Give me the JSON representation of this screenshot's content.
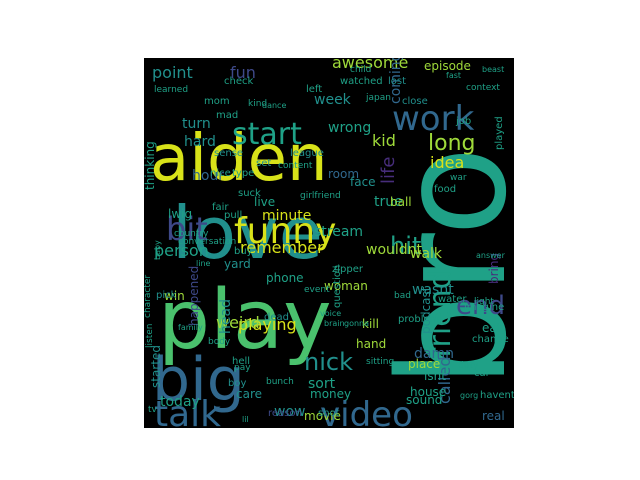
{
  "palette": {
    "background": "#000000",
    "yellow": "#d8e219",
    "light_green": "#9fda3a",
    "green": "#4ac16d",
    "teal": "#1fa187",
    "cyan": "#21908d",
    "blue": "#31688e",
    "indigo": "#3e4989",
    "purple": "#472d7b",
    "dark_purple": "#440154"
  },
  "words": [
    {
      "text": "bro",
      "color": "teal"
    },
    {
      "text": "play",
      "color": "green"
    },
    {
      "text": "aiden",
      "color": "yellow"
    },
    {
      "text": "love",
      "color": "cyan"
    },
    {
      "text": "big",
      "color": "blue"
    },
    {
      "text": "funny",
      "color": "yellow"
    },
    {
      "text": "work",
      "color": "blue"
    },
    {
      "text": "start",
      "color": "teal"
    },
    {
      "text": "talk",
      "color": "blue"
    },
    {
      "text": "video",
      "color": "blue"
    },
    {
      "text": "friend",
      "color": "teal"
    },
    {
      "text": "bit",
      "color": "indigo"
    },
    {
      "text": "nick",
      "color": "cyan"
    },
    {
      "text": "end",
      "color": "indigo"
    },
    {
      "text": "hit",
      "color": "teal"
    },
    {
      "text": "long",
      "color": "light_green"
    },
    {
      "text": "life",
      "color": "purple"
    },
    {
      "text": "awesome",
      "color": "light_green"
    },
    {
      "text": "playing",
      "color": "yellow"
    },
    {
      "text": "remember",
      "color": "yellow"
    },
    {
      "text": "idea",
      "color": "yellow"
    },
    {
      "text": "kid",
      "color": "light_green"
    },
    {
      "text": "fun",
      "color": "indigo"
    },
    {
      "text": "point",
      "color": "cyan"
    },
    {
      "text": "person",
      "color": "teal"
    },
    {
      "text": "weird",
      "color": "light_green"
    },
    {
      "text": "coming",
      "color": "blue"
    },
    {
      "text": "stream",
      "color": "teal"
    },
    {
      "text": "called",
      "color": "blue"
    },
    {
      "text": "damn",
      "color": "blue"
    },
    {
      "text": "true",
      "color": "teal"
    },
    {
      "text": "wasnt",
      "color": "cyan"
    },
    {
      "text": "walk",
      "color": "light_green"
    },
    {
      "text": "turn",
      "color": "cyan"
    },
    {
      "text": "hard",
      "color": "cyan"
    },
    {
      "text": "hour",
      "color": "blue"
    },
    {
      "text": "minute",
      "color": "yellow"
    },
    {
      "text": "head",
      "color": "cyan"
    },
    {
      "text": "wow",
      "color": "cyan"
    },
    {
      "text": "today",
      "color": "teal"
    },
    {
      "text": "sort",
      "color": "teal"
    },
    {
      "text": "movie",
      "color": "light_green"
    },
    {
      "text": "wouldnt",
      "color": "light_green"
    },
    {
      "text": "podcast",
      "color": "cyan"
    },
    {
      "text": "episode",
      "color": "light_green"
    },
    {
      "text": "week",
      "color": "cyan"
    },
    {
      "text": "wrong",
      "color": "teal"
    },
    {
      "text": "thinking",
      "color": "teal"
    },
    {
      "text": "room",
      "color": "blue"
    },
    {
      "text": "face",
      "color": "cyan"
    },
    {
      "text": "woman",
      "color": "light_green"
    },
    {
      "text": "house",
      "color": "teal"
    },
    {
      "text": "real",
      "color": "blue"
    },
    {
      "text": "eat",
      "color": "teal"
    },
    {
      "text": "sound",
      "color": "teal"
    },
    {
      "text": "isnt",
      "color": "teal"
    },
    {
      "text": "place",
      "color": "light_green"
    },
    {
      "text": "phone",
      "color": "teal"
    },
    {
      "text": "ball",
      "color": "light_green"
    },
    {
      "text": "kill",
      "color": "light_green"
    },
    {
      "text": "hand",
      "color": "light_green"
    },
    {
      "text": "money",
      "color": "teal"
    },
    {
      "text": "shot",
      "color": "cyan"
    },
    {
      "text": "care",
      "color": "cyan"
    },
    {
      "text": "win",
      "color": "light_green"
    },
    {
      "text": "started",
      "color": "cyan"
    },
    {
      "text": "happened",
      "color": "indigo"
    },
    {
      "text": "lwig",
      "color": "teal"
    },
    {
      "text": "yard",
      "color": "cyan"
    },
    {
      "text": "live",
      "color": "teal"
    },
    {
      "text": "dead",
      "color": "cyan"
    },
    {
      "text": "bring",
      "color": "purple"
    },
    {
      "text": "pick",
      "color": "cyan"
    },
    {
      "text": "league",
      "color": "cyan"
    },
    {
      "text": "check",
      "color": "teal"
    },
    {
      "text": "played",
      "color": "teal"
    },
    {
      "text": "car",
      "color": "teal"
    },
    {
      "text": "hell",
      "color": "teal"
    },
    {
      "text": "character",
      "color": "teal"
    },
    {
      "text": "buy",
      "color": "teal"
    },
    {
      "text": "mom",
      "color": "teal"
    },
    {
      "text": "question",
      "color": "teal"
    },
    {
      "text": "job",
      "color": "teal"
    },
    {
      "text": "boy",
      "color": "cyan"
    },
    {
      "text": "sense",
      "color": "cyan"
    },
    {
      "text": "set",
      "color": "cyan"
    },
    {
      "text": "lost",
      "color": "cyan"
    },
    {
      "text": "close",
      "color": "cyan"
    },
    {
      "text": "food",
      "color": "teal"
    },
    {
      "text": "water",
      "color": "teal"
    },
    {
      "text": "imagine",
      "color": "teal"
    },
    {
      "text": "change",
      "color": "teal"
    },
    {
      "text": "havent",
      "color": "teal"
    },
    {
      "text": "reason",
      "color": "indigo"
    },
    {
      "text": "fair",
      "color": "teal"
    },
    {
      "text": "type",
      "color": "teal"
    },
    {
      "text": "pull",
      "color": "teal"
    },
    {
      "text": "mad",
      "color": "teal"
    },
    {
      "text": "watched",
      "color": "teal"
    },
    {
      "text": "left",
      "color": "teal"
    },
    {
      "text": "problem",
      "color": "teal"
    },
    {
      "text": "zipper",
      "color": "teal"
    },
    {
      "text": "event",
      "color": "teal"
    },
    {
      "text": "girlfriend",
      "color": "teal"
    },
    {
      "text": "conversation",
      "color": "teal"
    },
    {
      "text": "country",
      "color": "teal"
    },
    {
      "text": "suck",
      "color": "teal"
    },
    {
      "text": "nice",
      "color": "teal"
    },
    {
      "text": "content",
      "color": "teal"
    },
    {
      "text": "learned",
      "color": "teal"
    },
    {
      "text": "japan",
      "color": "teal"
    },
    {
      "text": "duty",
      "color": "teal"
    },
    {
      "text": "light",
      "color": "teal"
    },
    {
      "text": "body",
      "color": "teal"
    },
    {
      "text": "pay",
      "color": "teal"
    },
    {
      "text": "tv",
      "color": "teal"
    },
    {
      "text": "context",
      "color": "teal"
    },
    {
      "text": "war",
      "color": "teal"
    },
    {
      "text": "child",
      "color": "teal"
    },
    {
      "text": "listen",
      "color": "teal"
    },
    {
      "text": "kind",
      "color": "teal"
    },
    {
      "text": "sitting",
      "color": "teal"
    },
    {
      "text": "gorg",
      "color": "teal"
    },
    {
      "text": "answer",
      "color": "teal"
    },
    {
      "text": "dance",
      "color": "teal"
    },
    {
      "text": "bunch",
      "color": "teal"
    },
    {
      "text": "bad",
      "color": "teal"
    },
    {
      "text": "beast",
      "color": "teal"
    },
    {
      "text": "fast",
      "color": "teal"
    },
    {
      "text": "lil",
      "color": "teal"
    },
    {
      "text": "baby",
      "color": "teal"
    },
    {
      "text": "voice",
      "color": "teal"
    },
    {
      "text": "gonna",
      "color": "teal"
    },
    {
      "text": "family",
      "color": "teal"
    },
    {
      "text": "line",
      "color": "teal"
    },
    {
      "text": "brain",
      "color": "teal"
    }
  ]
}
